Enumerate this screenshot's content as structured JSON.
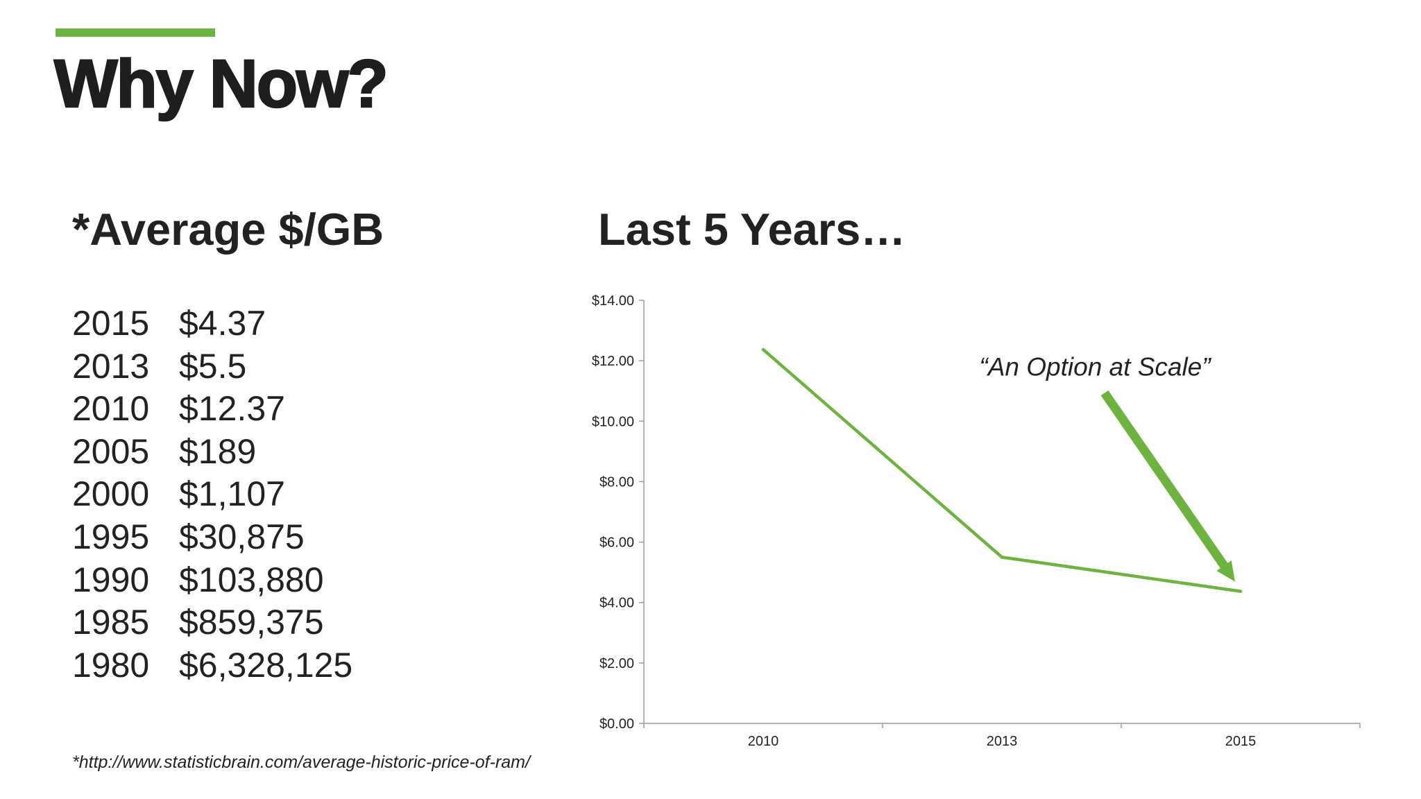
{
  "slide": {
    "title": "Why Now?",
    "accent_color": "#6db33f"
  },
  "left": {
    "heading": "*Average $/GB",
    "rows": [
      {
        "year": "2015",
        "price": "$4.37"
      },
      {
        "year": "2013",
        "price": "$5.5"
      },
      {
        "year": "2010",
        "price": "$12.37"
      },
      {
        "year": "2005",
        "price": "$189"
      },
      {
        "year": "2000",
        "price": "$1,107"
      },
      {
        "year": "1995",
        "price": "$30,875"
      },
      {
        "year": "1990",
        "price": "$103,880"
      },
      {
        "year": "1985",
        "price": "$859,375"
      },
      {
        "year": "1980",
        "price": "$6,328,125"
      }
    ],
    "source": "*http://www.statisticbrain.com/average-historic-price-of-ram/"
  },
  "right": {
    "heading": "Last 5 Years…"
  },
  "chart_data": {
    "type": "line",
    "categories": [
      "2010",
      "2013",
      "2015"
    ],
    "series": [
      {
        "values": [
          12.37,
          5.5,
          4.37
        ],
        "color": "#6db33f"
      }
    ],
    "ylim": [
      0,
      14
    ],
    "yticks": [
      0,
      2,
      4,
      6,
      8,
      10,
      12,
      14
    ],
    "ytick_labels": [
      "$0.00",
      "$2.00",
      "$4.00",
      "$6.00",
      "$8.00",
      "$10.00",
      "$12.00",
      "$14.00"
    ],
    "grid": false,
    "legend": "none",
    "annotation": {
      "text": "“An Option at Scale”",
      "points_to": "2015"
    }
  }
}
